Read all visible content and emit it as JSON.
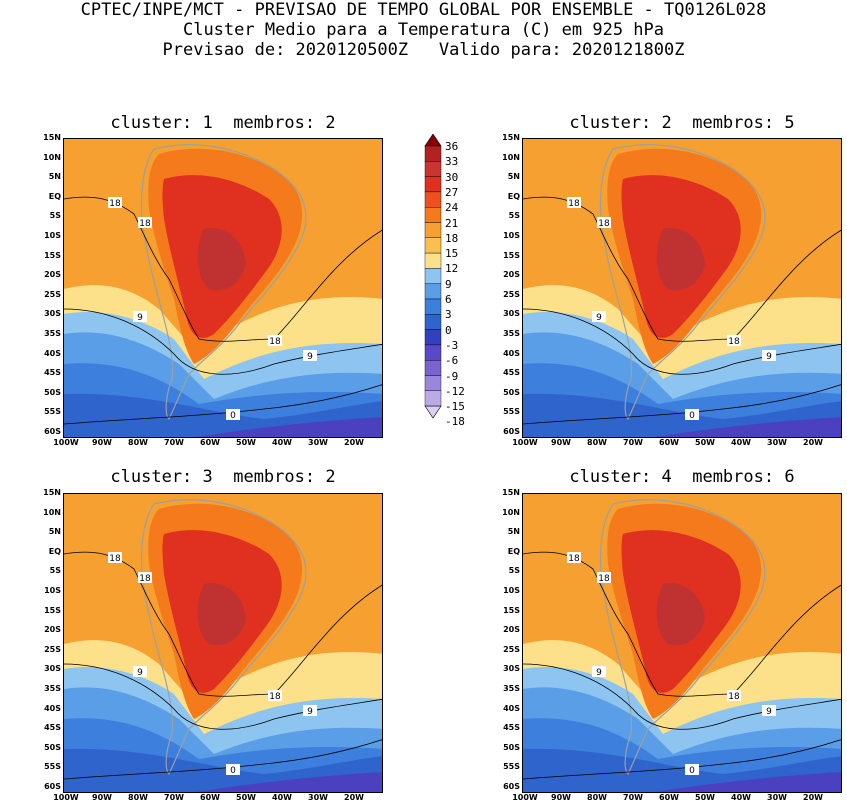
{
  "header": {
    "line1": "CPTEC/INPE/MCT - PREVISAO DE TEMPO GLOBAL POR ENSEMBLE - TQ0126L028",
    "line2": "Cluster Medio para a Temperatura (C) em 925 hPa",
    "line3": "Previsao de: 2020120500Z   Valido para: 2020121800Z"
  },
  "panels": [
    {
      "title": "cluster: 1  membros: 2",
      "contours": [
        "18",
        "18",
        "18",
        "9",
        "9",
        "0"
      ]
    },
    {
      "title": "cluster: 2  membros: 5",
      "contours": [
        "18",
        "18",
        "18",
        "9",
        "9",
        "0"
      ]
    },
    {
      "title": "cluster: 3  membros: 2",
      "contours": [
        "18",
        "18",
        "18",
        "9",
        "9",
        "0"
      ]
    },
    {
      "title": "cluster: 4  membros: 6",
      "contours": [
        "18",
        "18",
        "18",
        "9",
        "9",
        "0"
      ]
    }
  ],
  "lat_labels": [
    "15N",
    "10N",
    "5N",
    "EQ",
    "5S",
    "10S",
    "15S",
    "20S",
    "25S",
    "30S",
    "35S",
    "40S",
    "45S",
    "50S",
    "55S",
    "60S"
  ],
  "lon_labels": [
    "100W",
    "90W",
    "80W",
    "70W",
    "60W",
    "50W",
    "40W",
    "30W",
    "20W"
  ],
  "colorbar": {
    "labels": [
      "36",
      "33",
      "30",
      "27",
      "24",
      "21",
      "18",
      "15",
      "12",
      "9",
      "6",
      "3",
      "0",
      "-3",
      "-6",
      "-9",
      "-12",
      "-15",
      "-18"
    ],
    "colors": [
      "#8b0000",
      "#b22222",
      "#cc3333",
      "#e03020",
      "#f05020",
      "#f47a1c",
      "#f5a030",
      "#f8c050",
      "#fde08a",
      "#8ec4f0",
      "#5a9ee8",
      "#3d7fdd",
      "#2f64cc",
      "#3040c0",
      "#5a48c8",
      "#7a62d0",
      "#9c86dc",
      "#bcaae6",
      "#dcd0f2"
    ]
  },
  "palette": {
    "tropics": "#f5a030",
    "warm": "#f47a1c",
    "hot": "#e03020",
    "core": "#c03232",
    "mild": "#fde08a",
    "cool1": "#8ec4f0",
    "cool2": "#5a9ee8",
    "cool3": "#3d7fdd",
    "cool4": "#2f64cc",
    "cold": "#4a40c0"
  }
}
